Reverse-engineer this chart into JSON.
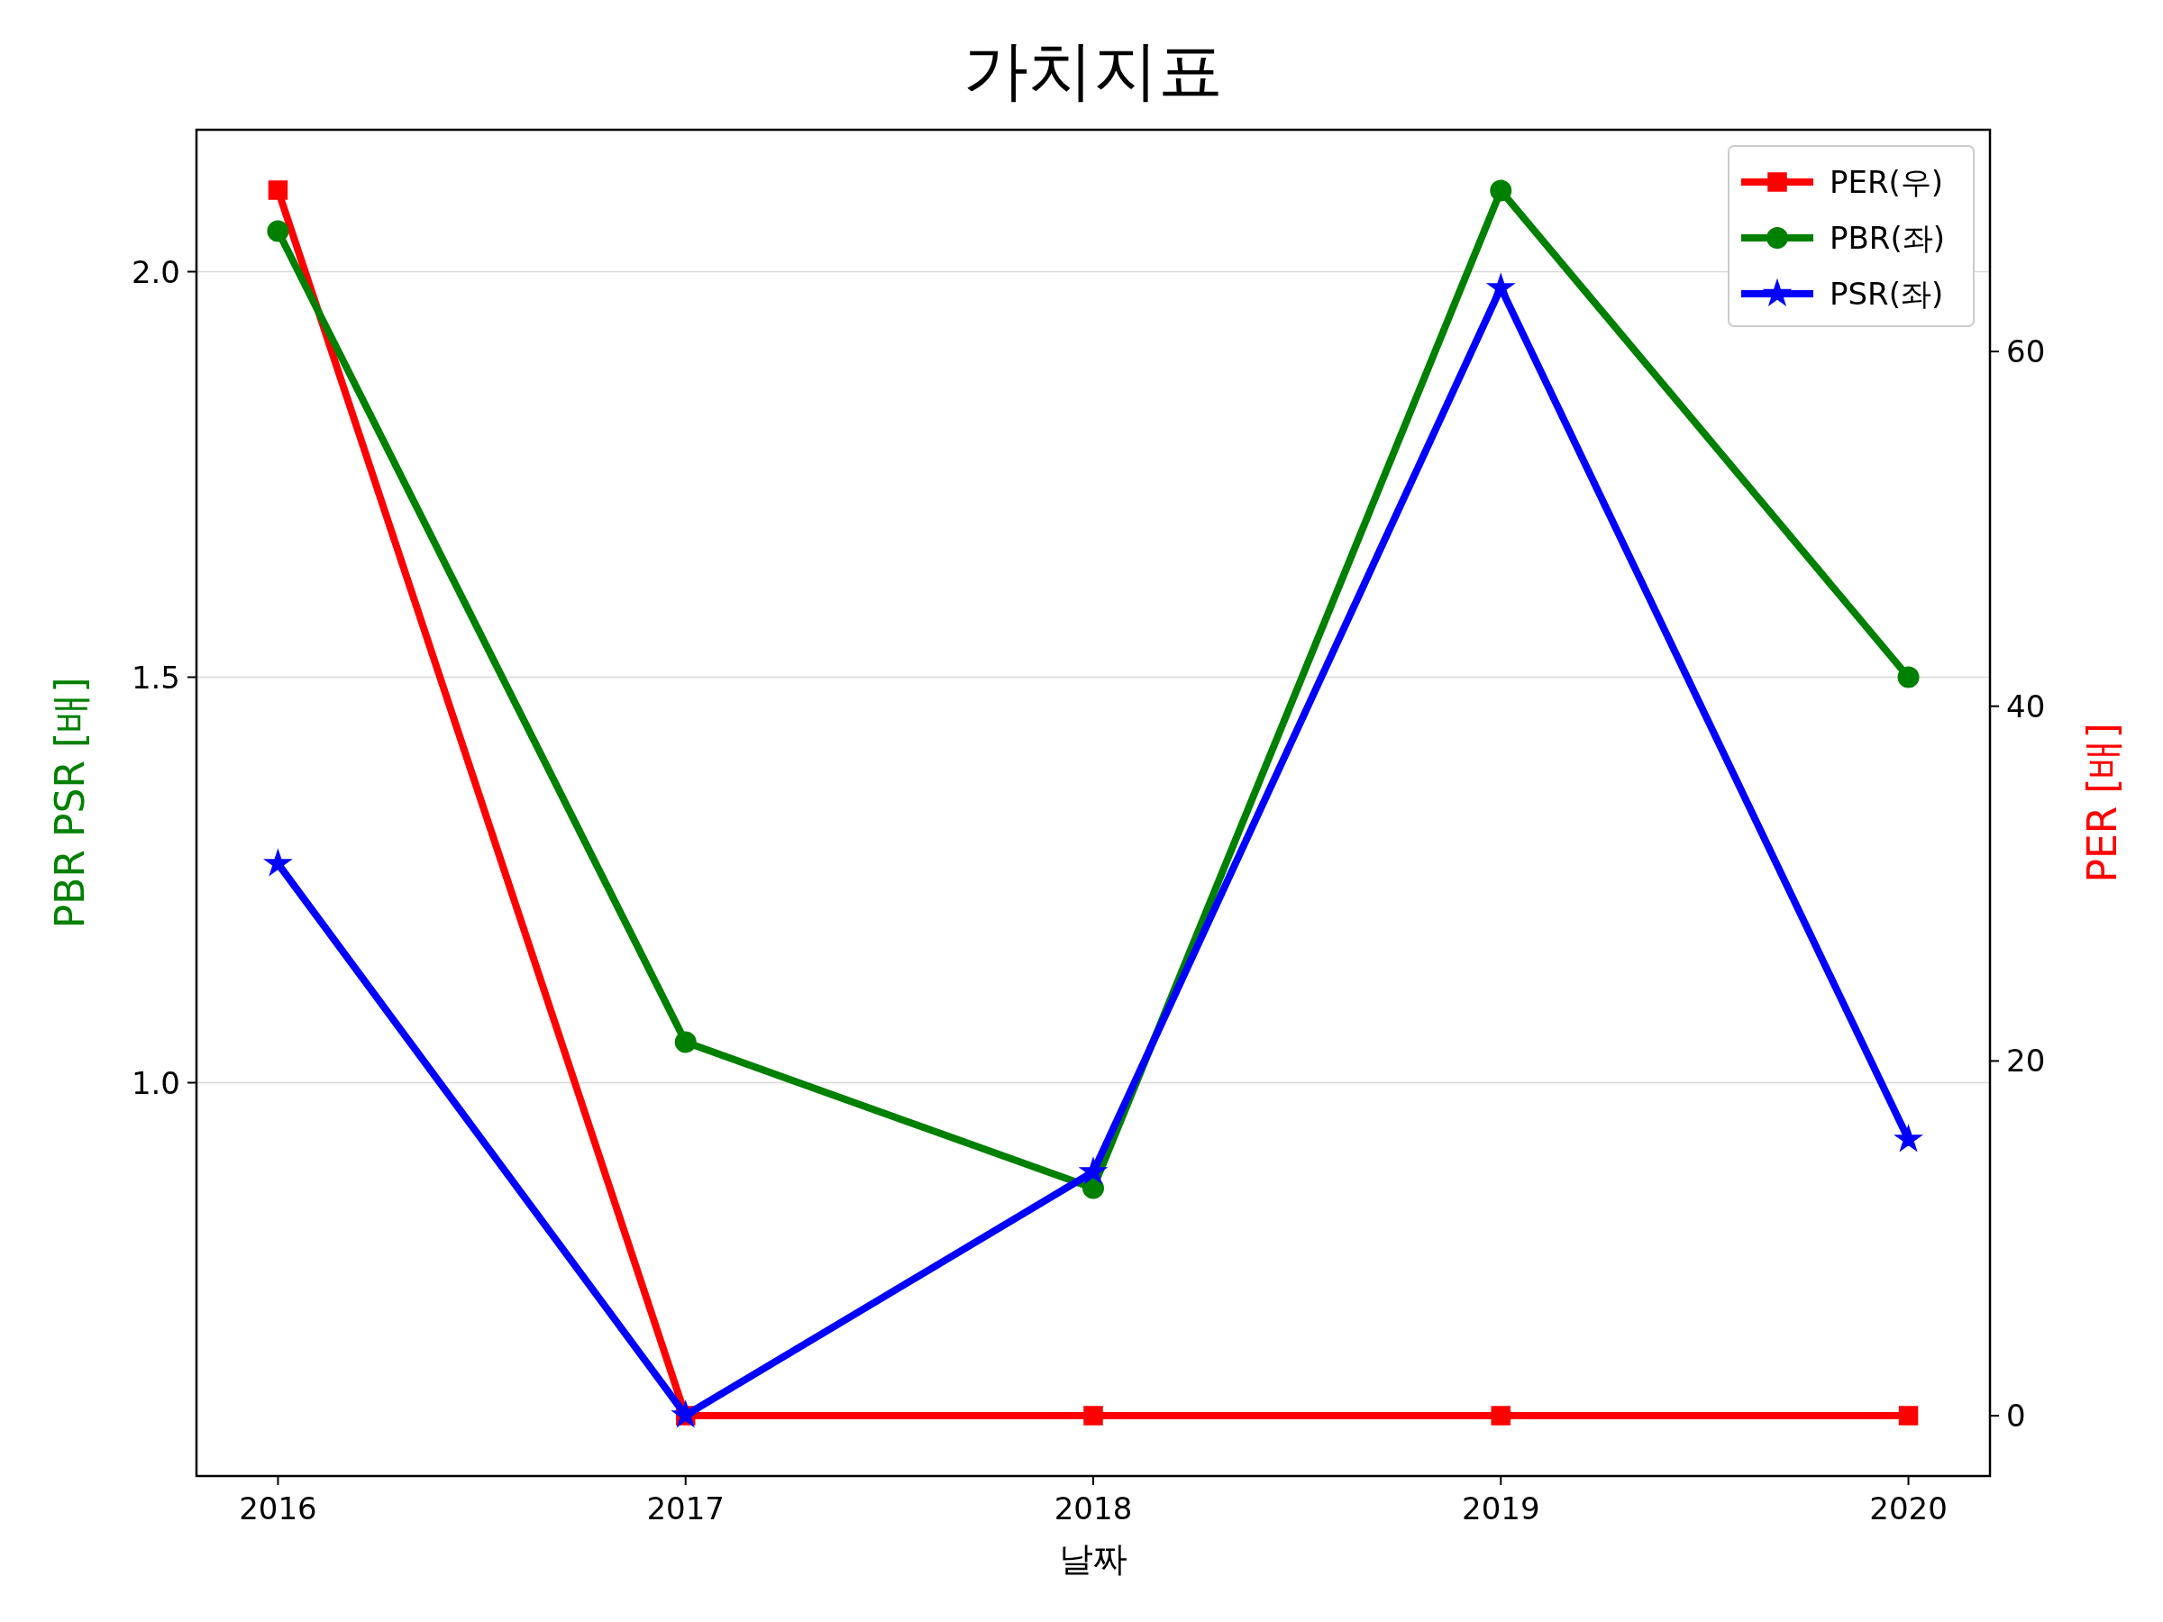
{
  "chart_data": {
    "type": "line",
    "title": "가치지표",
    "xlabel": "날짜",
    "ylabel": "PBR PSR [배]",
    "y2label": "PER [배]",
    "x": [
      2016,
      2017,
      2018,
      2019,
      2020
    ],
    "xlim": [
      2015.8,
      2020.2
    ],
    "xticks": [
      2016,
      2017,
      2018,
      2019,
      2020
    ],
    "ylim": [
      0.515,
      2.175
    ],
    "yticks": [
      {
        "value": 1,
        "label": "1.0"
      },
      {
        "value": 1.5,
        "label": "1.5"
      },
      {
        "value": 2,
        "label": "2.0"
      }
    ],
    "y2lim": [
      -3.4,
      72.5
    ],
    "y2ticks": [
      0,
      20,
      40,
      60
    ],
    "grid": "y",
    "legend": "top right",
    "series": [
      {
        "name": "PER(우)",
        "color": "#ff0000",
        "axis": "y2",
        "marker": "square",
        "values": [
          69.1,
          0,
          0,
          0,
          0
        ]
      },
      {
        "name": "PBR(좌)",
        "color": "#008000",
        "axis": "y",
        "marker": "circle",
        "values": [
          2.05,
          1.05,
          0.87,
          2.1,
          1.5
        ]
      },
      {
        "name": "PSR(좌)",
        "color": "#0000ff",
        "axis": "y",
        "marker": "star",
        "values": [
          1.27,
          0.59,
          0.89,
          1.98,
          0.93
        ]
      }
    ]
  }
}
